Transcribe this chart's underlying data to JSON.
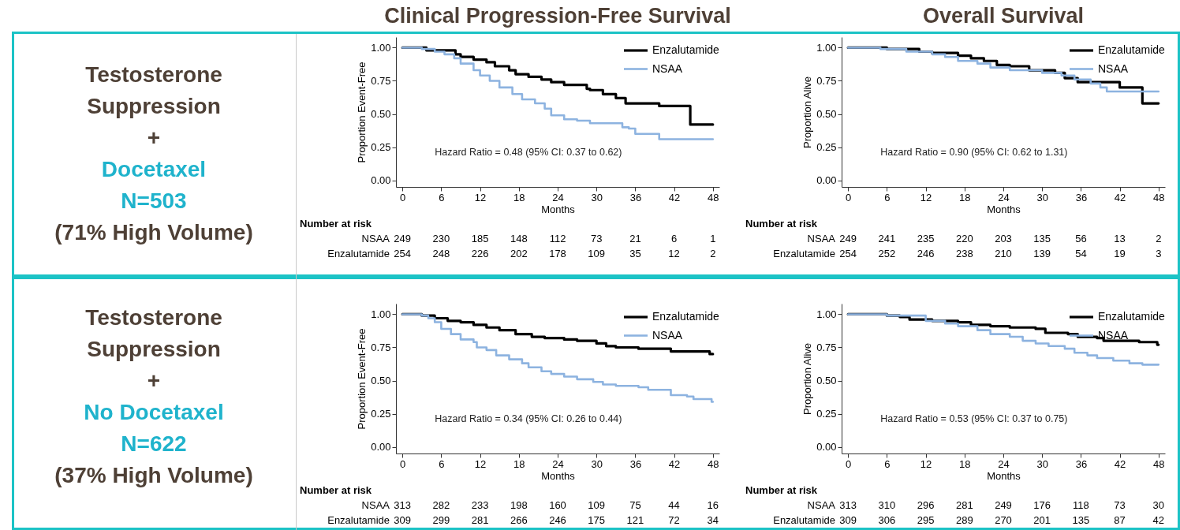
{
  "chart_data": [
    {
      "type": "step",
      "title": "Clinical Progression-Free Survival",
      "subtitle": "Testosterone\nSuppression\n+\nDocetaxel\nN=503\n(71% High Volume)",
      "xlabel": "Months",
      "ylabel": "Proportion Event-Free",
      "xlim": [
        -1,
        49
      ],
      "ylim": [
        -0.05,
        1.08
      ],
      "xticks": [
        0,
        6,
        12,
        18,
        24,
        30,
        36,
        42,
        48
      ],
      "yticks": [
        {
          "value": 0,
          "label": "0.00"
        },
        {
          "value": 0.25,
          "label": "0.25"
        },
        {
          "value": 0.5,
          "label": "0.50"
        },
        {
          "value": 0.75,
          "label": "0.75"
        },
        {
          "value": 1,
          "label": "1.00"
        }
      ],
      "legend": "top right",
      "grid": false,
      "series": [
        {
          "name": "Enzalutamide",
          "color": "#000000",
          "x": [
            0,
            3.7,
            7.8,
            8.2,
            9,
            11,
            13,
            14.3,
            16.5,
            17.5,
            19.5,
            21.5,
            23,
            25,
            28.5,
            29,
            31,
            33,
            34.5,
            39.7,
            44.5,
            48
          ],
          "values": [
            1,
            0.98,
            0.98,
            0.95,
            0.93,
            0.91,
            0.89,
            0.86,
            0.83,
            0.8,
            0.78,
            0.76,
            0.74,
            0.72,
            0.69,
            0.68,
            0.65,
            0.62,
            0.58,
            0.56,
            0.42,
            0.42
          ]
        },
        {
          "name": "NSAA",
          "color": "#8db3e0",
          "x": [
            0,
            3,
            5,
            6.5,
            8,
            9,
            11,
            12,
            13.5,
            15,
            17,
            18.5,
            20.5,
            22,
            23,
            25,
            27,
            29,
            33,
            34,
            35,
            36,
            39.7,
            48
          ],
          "values": [
            1,
            0.99,
            0.97,
            0.95,
            0.92,
            0.88,
            0.83,
            0.79,
            0.75,
            0.7,
            0.65,
            0.61,
            0.58,
            0.54,
            0.49,
            0.46,
            0.45,
            0.43,
            0.43,
            0.4,
            0.39,
            0.35,
            0.31,
            0.31
          ]
        }
      ],
      "annotations": [
        "Hazard Ratio = 0.48 (95% CI: 0.37 to 0.62)",
        "Number at risk",
        "NSAA 249 230 185 148 112 73 21 6 1",
        "Enzalutamide 254 248 226 202 178 109 35 12 2"
      ]
    },
    {
      "type": "step",
      "title": "Overall Survival",
      "xlabel": "Months",
      "ylabel": "Proportion Alive",
      "xlim": [
        -1,
        49
      ],
      "ylim": [
        -0.05,
        1.08
      ],
      "xticks": [
        0,
        6,
        12,
        18,
        24,
        30,
        36,
        42,
        48
      ],
      "yticks": [
        {
          "value": 0,
          "label": "0.00"
        },
        {
          "value": 0.25,
          "label": "0.25"
        },
        {
          "value": 0.5,
          "label": "0.50"
        },
        {
          "value": 0.75,
          "label": "0.75"
        },
        {
          "value": 1,
          "label": "1.00"
        }
      ],
      "legend": "top right",
      "grid": false,
      "series": [
        {
          "name": "Enzalutamide",
          "color": "#000000",
          "x": [
            0,
            6,
            11,
            13,
            17,
            19,
            21,
            23,
            25,
            28,
            32,
            33.5,
            35.5,
            42,
            45.5,
            48
          ],
          "values": [
            1,
            0.99,
            0.97,
            0.96,
            0.94,
            0.92,
            0.9,
            0.87,
            0.86,
            0.83,
            0.81,
            0.77,
            0.74,
            0.7,
            0.58,
            0.58
          ]
        },
        {
          "name": "NSAA",
          "color": "#8db3e0",
          "x": [
            0,
            5,
            9,
            13,
            15,
            17,
            20,
            22,
            25,
            30,
            33,
            35,
            37.5,
            39,
            40,
            48
          ],
          "values": [
            1,
            0.99,
            0.97,
            0.95,
            0.93,
            0.9,
            0.88,
            0.85,
            0.83,
            0.81,
            0.79,
            0.76,
            0.73,
            0.7,
            0.67,
            0.67
          ]
        }
      ],
      "annotations": [
        "Hazard Ratio = 0.90 (95% CI: 0.62 to 1.31)",
        "Number at risk",
        "NSAA 249 241 235 220 203 135 56 13 2",
        "Enzalutamide 254 252 246 238 210 139 54 19 3"
      ]
    },
    {
      "type": "step",
      "subtitle": "Testosterone\nSuppression\n+\nNo Docetaxel\nN=622\n(37% High Volume)",
      "xlabel": "Months",
      "ylabel": "Proportion Event-Free",
      "xlim": [
        -1,
        49
      ],
      "ylim": [
        -0.05,
        1.08
      ],
      "xticks": [
        0,
        6,
        12,
        18,
        24,
        30,
        36,
        42,
        48
      ],
      "yticks": [
        {
          "value": 0,
          "label": "0.00"
        },
        {
          "value": 0.25,
          "label": "0.25"
        },
        {
          "value": 0.5,
          "label": "0.50"
        },
        {
          "value": 0.75,
          "label": "0.75"
        },
        {
          "value": 1,
          "label": "1.00"
        }
      ],
      "legend": "top right",
      "grid": false,
      "series": [
        {
          "name": "Enzalutamide",
          "color": "#000000",
          "x": [
            0,
            3,
            5,
            7,
            9,
            11,
            13,
            15,
            17.5,
            20,
            22,
            25,
            27,
            30,
            31.5,
            33,
            36.5,
            41.5,
            47.5,
            48
          ],
          "values": [
            1,
            0.99,
            0.97,
            0.95,
            0.94,
            0.92,
            0.9,
            0.88,
            0.85,
            0.83,
            0.82,
            0.81,
            0.8,
            0.78,
            0.76,
            0.75,
            0.74,
            0.72,
            0.7,
            0.7
          ]
        },
        {
          "name": "NSAA",
          "color": "#8db3e0",
          "x": [
            0,
            3,
            4,
            5,
            6,
            7.5,
            9,
            11,
            11.5,
            13,
            14.5,
            16.5,
            18.5,
            19.5,
            21.5,
            23,
            25,
            27,
            29.5,
            31,
            33,
            36.5,
            38,
            41.5,
            44,
            45,
            47.8,
            48
          ],
          "values": [
            1,
            0.99,
            0.97,
            0.94,
            0.89,
            0.85,
            0.81,
            0.79,
            0.75,
            0.73,
            0.69,
            0.66,
            0.63,
            0.6,
            0.57,
            0.55,
            0.53,
            0.51,
            0.49,
            0.47,
            0.46,
            0.45,
            0.43,
            0.39,
            0.38,
            0.36,
            0.34,
            0.34
          ]
        }
      ],
      "annotations": [
        "Hazard Ratio = 0.34 (95% CI: 0.26 to 0.44)",
        "Number at risk",
        "NSAA 313 282 233 198 160 109 75 44 16",
        "Enzalutamide 309 299 281 266 246 175 121 72 34"
      ]
    },
    {
      "type": "step",
      "xlabel": "Months",
      "ylabel": "Proportion Alive",
      "xlim": [
        -1,
        49
      ],
      "ylim": [
        -0.05,
        1.08
      ],
      "xticks": [
        0,
        6,
        12,
        18,
        24,
        30,
        36,
        42,
        48
      ],
      "yticks": [
        {
          "value": 0,
          "label": "0.00"
        },
        {
          "value": 0.25,
          "label": "0.25"
        },
        {
          "value": 0.5,
          "label": "0.50"
        },
        {
          "value": 0.75,
          "label": "0.75"
        },
        {
          "value": 1,
          "label": "1.00"
        }
      ],
      "legend": "top right",
      "grid": false,
      "series": [
        {
          "name": "Enzalutamide",
          "color": "#000000",
          "x": [
            0,
            6,
            8,
            9.5,
            13,
            17,
            19,
            22,
            25,
            29,
            30.5,
            34,
            35.5,
            38.5,
            39.5,
            45,
            47.8,
            48
          ],
          "values": [
            1,
            0.99,
            0.98,
            0.96,
            0.95,
            0.94,
            0.92,
            0.91,
            0.9,
            0.89,
            0.86,
            0.85,
            0.83,
            0.82,
            0.8,
            0.79,
            0.77,
            0.77
          ]
        },
        {
          "name": "NSAA",
          "color": "#8db3e0",
          "x": [
            0,
            6,
            12,
            15,
            17,
            20,
            22,
            25,
            27,
            29,
            31,
            33.5,
            35,
            37,
            38.5,
            41,
            43.5,
            45.5,
            48
          ],
          "values": [
            1,
            0.99,
            0.95,
            0.93,
            0.91,
            0.88,
            0.85,
            0.83,
            0.8,
            0.78,
            0.76,
            0.74,
            0.71,
            0.69,
            0.67,
            0.65,
            0.63,
            0.62,
            0.62
          ]
        }
      ],
      "annotations": [
        "Hazard Ratio = 0.53 (95% CI: 0.37 to 0.75)",
        "Number at risk",
        "NSAA 313 310 296 281 249 176 118 73 30",
        "Enzalutamide 309 306 295 289 270 201 135 87 42"
      ]
    }
  ]
}
